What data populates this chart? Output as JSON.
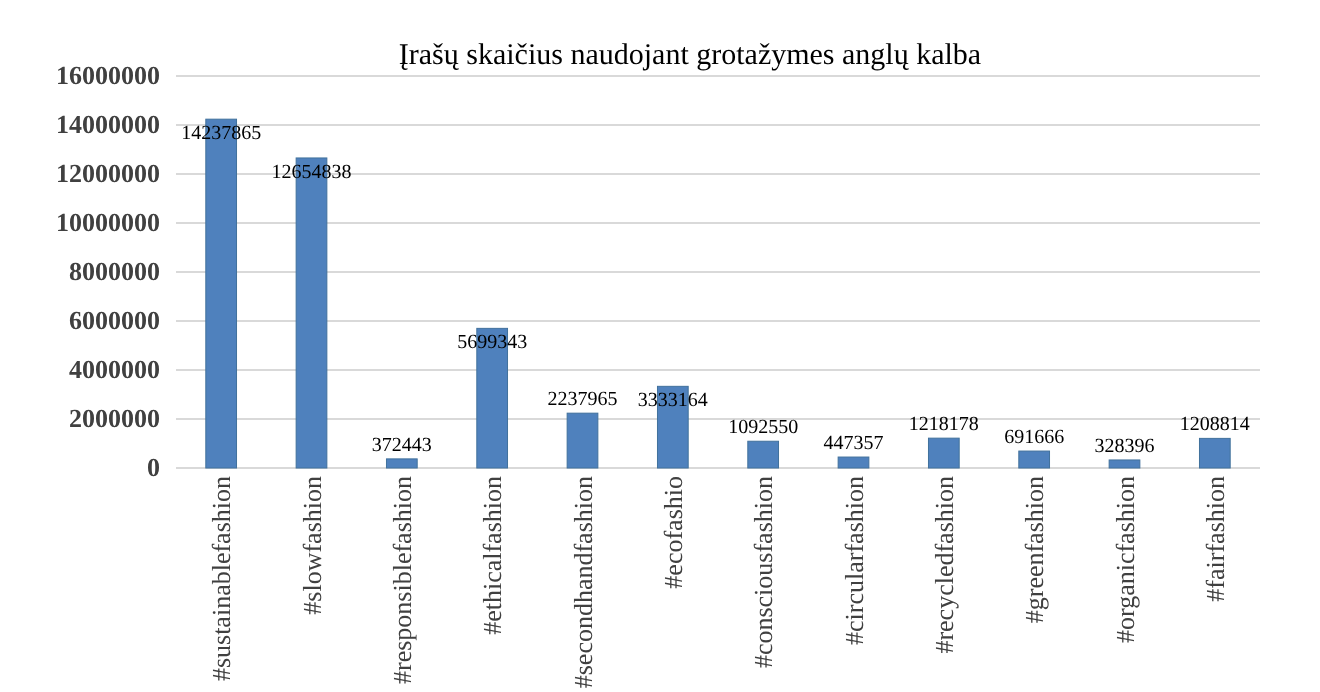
{
  "chart_data": {
    "type": "bar",
    "title": "Įrašų skaičius naudojant grotažymes anglų kalba",
    "categories": [
      "#sustainablefashion",
      "#slowfashion",
      "#responsiblefashion",
      "#ethicalfashion",
      "#secondhandfashion",
      "#ecofashio",
      "#consciousfashion",
      "#circularfashion",
      "#recycledfashion",
      "#greenfashion",
      "#organicfashion",
      "#fairfashion"
    ],
    "values": [
      14237865,
      12654838,
      372443,
      5699343,
      2237965,
      3333164,
      1092550,
      447357,
      1218178,
      691666,
      328396,
      1208814
    ],
    "color": "#4f81bd",
    "ylim": [
      0,
      16000000
    ],
    "yticks": [
      0,
      2000000,
      4000000,
      6000000,
      8000000,
      10000000,
      12000000,
      14000000,
      16000000
    ],
    "grid": true,
    "data_labels": true
  }
}
